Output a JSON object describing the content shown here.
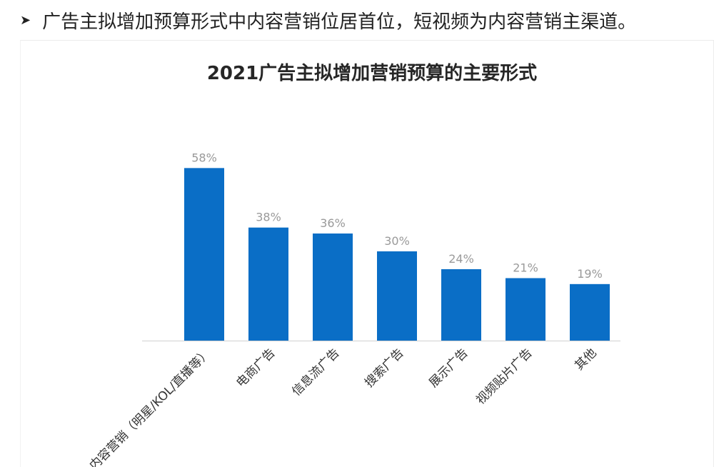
{
  "headline": {
    "bullet_icon": "arrowhead-bullet-icon",
    "text": "广告主拟增加预算形式中内容营销位居首位，短视频为内容营销主渠道。"
  },
  "chart_data": {
    "type": "bar",
    "title": "2021广告主拟增加营销预算的主要形式",
    "categories": [
      "内容营销（明星/KOL/直播等）",
      "电商广告",
      "信息流广告",
      "搜索广告",
      "展示广告",
      "视频贴片广告",
      "其他"
    ],
    "values": [
      58,
      38,
      36,
      30,
      24,
      21,
      19
    ],
    "value_labels": [
      "58%",
      "38%",
      "36%",
      "30%",
      "24%",
      "21%",
      "19%"
    ],
    "unit": "%",
    "ylim": [
      0,
      60
    ],
    "grid": false,
    "legend": "none",
    "bar_color": "#0A6EC6",
    "label_color": "#9a9a9a",
    "category_color": "#333333",
    "title_color": "#262626"
  }
}
